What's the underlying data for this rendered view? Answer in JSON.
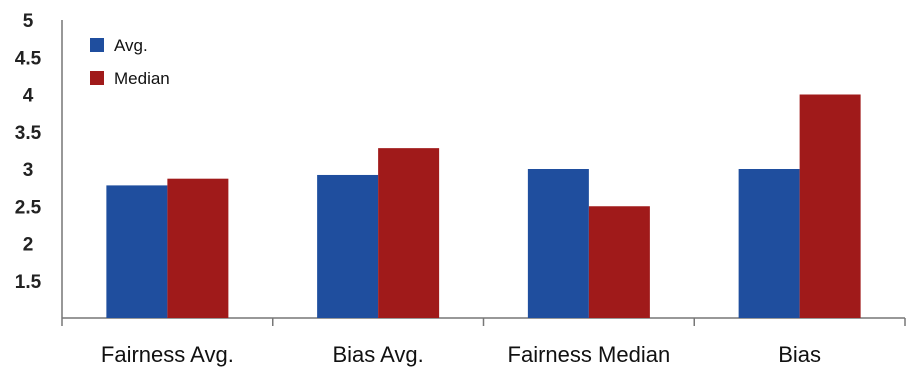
{
  "chart_data": {
    "type": "bar",
    "categories": [
      "Fairness Avg.",
      "Bias Avg.",
      "Fairness Median",
      "Bias"
    ],
    "series": [
      {
        "name": "Avg.",
        "color": "#1f4e9e",
        "values": [
          2.78,
          2.92,
          3.0,
          3.0
        ]
      },
      {
        "name": "Median",
        "color": "#a01a1a",
        "values": [
          2.87,
          3.28,
          2.5,
          4.0
        ]
      }
    ],
    "yticks": [
      "1.5",
      "2",
      "2.5",
      "3",
      "3.5",
      "4",
      "4.5",
      "5"
    ],
    "ylim": [
      1,
      5
    ],
    "legend_position": "top-left",
    "grid": false,
    "title": "",
    "xlabel": "",
    "ylabel": ""
  }
}
